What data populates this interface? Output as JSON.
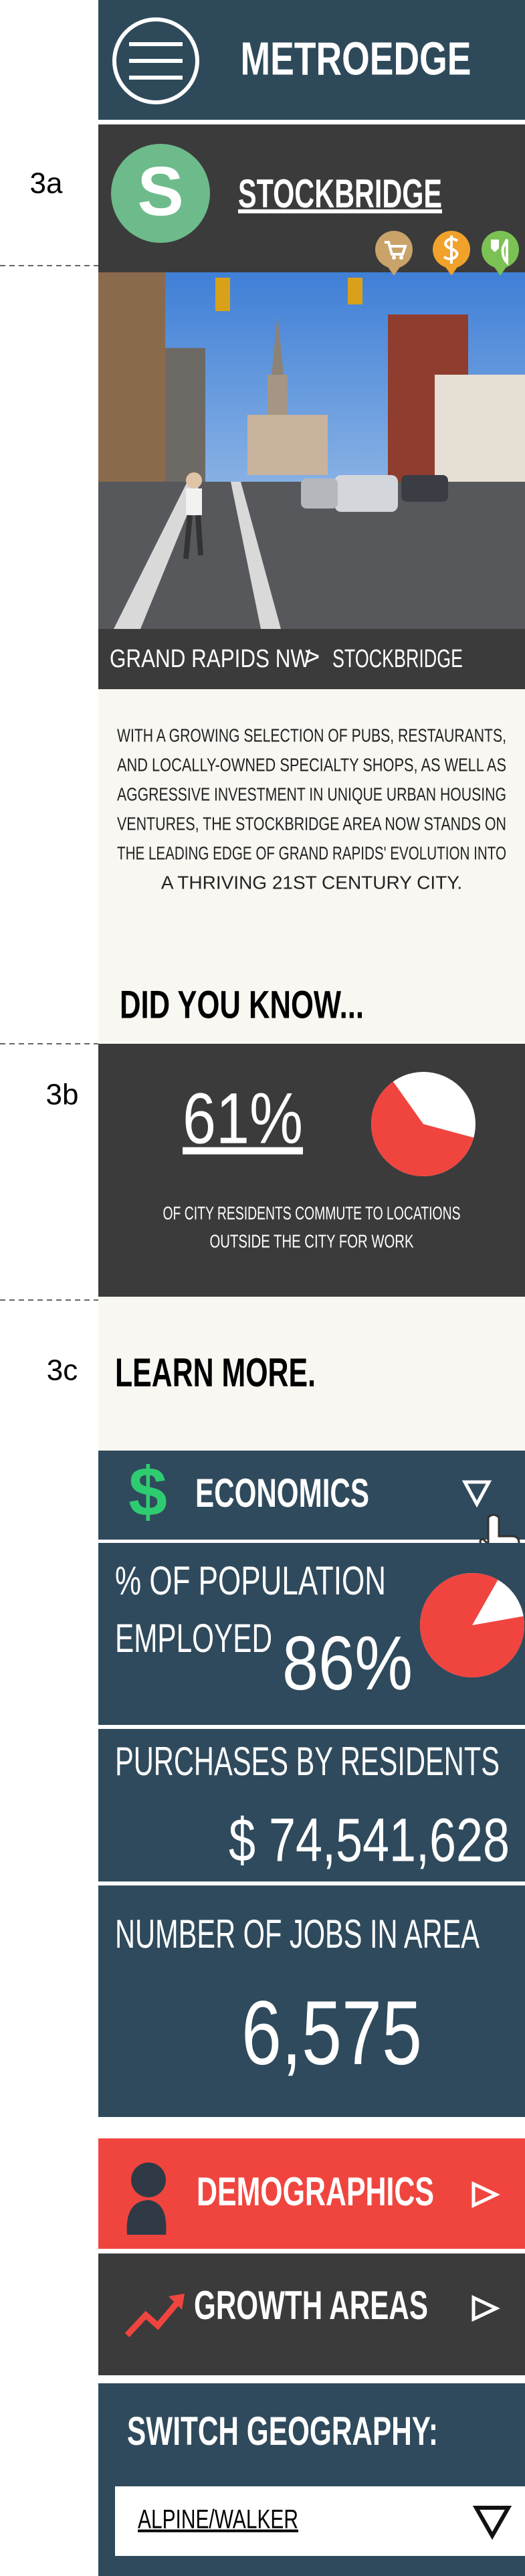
{
  "header": {
    "title": "METROEDGE"
  },
  "section_labels": [
    "3a",
    "3b",
    "3c"
  ],
  "location": {
    "logo_letter": "S",
    "name": "STOCKBRIDGE",
    "breadcrumb": {
      "parent": "GRAND RAPIDS NW",
      "separator": ">",
      "current": "STOCKBRIDGE"
    }
  },
  "description": [
    "WITH A GROWING SELECTION OF PUBS, RESTAURANTS,",
    "AND LOCALLY-OWNED SPECIALTY SHOPS, AS WELL AS",
    "AGGRESSIVE INVESTMENT IN UNIQUE URBAN HOUSING",
    "VENTURES, THE STOCKBRIDGE AREA NOW STANDS ON",
    "THE LEADING EDGE OF GRAND RAPIDS' EVOLUTION INTO",
    "A THRIVING 21ST CENTURY CITY."
  ],
  "did_you_know": {
    "heading": "DID YOU KNOW...",
    "stat": {
      "value": 61,
      "label": "61%"
    },
    "caption": [
      "OF CITY RESIDENTS COMMUTE TO LOCATIONS",
      "OUTSIDE THE CITY FOR WORK"
    ]
  },
  "learn_more": {
    "heading": "LEARN MORE.",
    "economics": {
      "icon": "$",
      "title": "ECONOMICS",
      "employed_label": [
        "% OF POPULATION",
        "EMPLOYED"
      ],
      "employed": {
        "value": 86,
        "label": "86%"
      },
      "purchases_label": "PURCHASES BY RESIDENTS",
      "purchases": "$ 74,541,628",
      "jobs_label": "NUMBER OF JOBS IN AREA",
      "jobs": "6,575"
    },
    "demographics": "DEMOGRAPHICS",
    "growth_areas": "GROWTH AREAS"
  },
  "switch_geography": {
    "label": "SWITCH GEOGRAPHY:",
    "selected": "ALPINE/WALKER"
  }
}
